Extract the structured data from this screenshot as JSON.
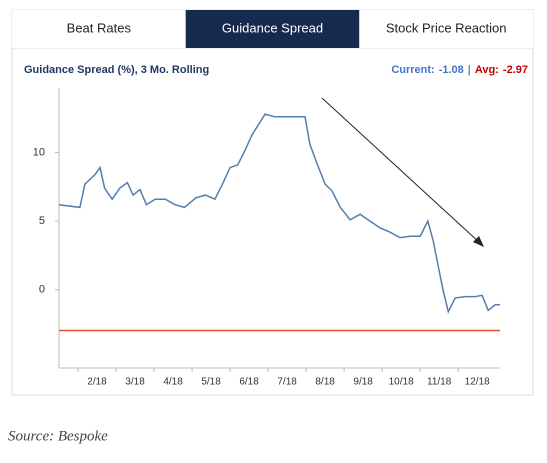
{
  "tabs": [
    "Beat Rates",
    "Guidance Spread",
    "Stock Price Reaction"
  ],
  "active_tab": 1,
  "source": "Source: Bespoke",
  "chart_data": {
    "type": "line",
    "title": "Guidance Spread (%), 3 Mo. Rolling",
    "current_label": "Current:",
    "current": -1.08,
    "separator": "|",
    "avg_label": "Avg:",
    "avg": -2.97,
    "avg_color": "#e0502a",
    "x": [
      0,
      0.55,
      0.68,
      0.95,
      1.08,
      1.2,
      1.4,
      1.6,
      1.8,
      1.95,
      2.13,
      2.3,
      2.53,
      2.8,
      3.05,
      3.3,
      3.6,
      3.85,
      4.1,
      4.3,
      4.5,
      4.7,
      4.9,
      5.08,
      5.24,
      5.42,
      5.68,
      5.95,
      6.2,
      6.47,
      6.6,
      6.8,
      7.0,
      7.18,
      7.4,
      7.66,
      7.92,
      8.18,
      8.45,
      8.7,
      8.97,
      9.24,
      9.5,
      9.7,
      9.84,
      9.97,
      10.1,
      10.24,
      10.42,
      10.68,
      10.95,
      11.13,
      11.29,
      11.47,
      11.6
    ],
    "series": [
      {
        "name": "Guidance Spread",
        "color": "#4f7fb0",
        "values": [
          6.2,
          6.0,
          7.7,
          8.4,
          8.9,
          7.4,
          6.6,
          7.4,
          7.8,
          6.9,
          7.3,
          6.2,
          6.6,
          6.6,
          6.2,
          6.0,
          6.7,
          6.9,
          6.6,
          7.7,
          8.9,
          9.1,
          10.2,
          11.3,
          12.0,
          12.8,
          12.6,
          12.6,
          12.6,
          12.6,
          10.6,
          9.1,
          7.7,
          7.2,
          6.0,
          5.1,
          5.5,
          5.0,
          4.5,
          4.2,
          3.8,
          3.9,
          3.9,
          5.0,
          3.6,
          1.8,
          0.0,
          -1.6,
          -0.6,
          -0.5,
          -0.5,
          -0.4,
          -1.5,
          -1.1,
          -1.08
        ]
      }
    ],
    "xlim": [
      0,
      11.6
    ],
    "xticks": [
      {
        "value": 1,
        "label": "2/18"
      },
      {
        "value": 2,
        "label": "3/18"
      },
      {
        "value": 3,
        "label": "4/18"
      },
      {
        "value": 4,
        "label": "5/18"
      },
      {
        "value": 5,
        "label": "6/18"
      },
      {
        "value": 6,
        "label": "7/18"
      },
      {
        "value": 7,
        "label": "8/18"
      },
      {
        "value": 8,
        "label": "9/18"
      },
      {
        "value": 9,
        "label": "10/18"
      },
      {
        "value": 10,
        "label": "11/18"
      },
      {
        "value": 11,
        "label": "12/18"
      }
    ],
    "ylim": [
      -5.7,
      14.7
    ],
    "yticks": [
      0,
      5,
      10
    ]
  }
}
